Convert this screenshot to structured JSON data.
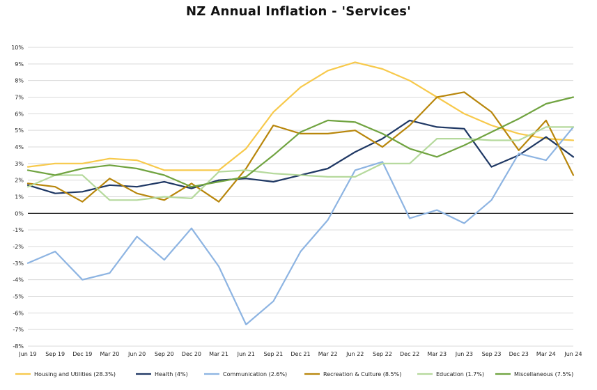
{
  "chart_data": {
    "type": "line",
    "title": "NZ Annual Inflation - 'Services'",
    "xlabel": "",
    "ylabel": "",
    "ylim": [
      -8,
      10
    ],
    "y_tick_labels": [
      "-8%",
      "-7%",
      "-6%",
      "-5%",
      "-4%",
      "-3%",
      "-2%",
      "-1%",
      "0%",
      "1%",
      "2%",
      "3%",
      "4%",
      "5%",
      "6%",
      "7%",
      "8%",
      "9%",
      "10%"
    ],
    "categories": [
      "Jun 19",
      "Sep 19",
      "Dec 19",
      "Mar 20",
      "Jun 20",
      "Sep 20",
      "Dec 20",
      "Mar 21",
      "Jun 21",
      "Sep 21",
      "Dec 21",
      "Mar 22",
      "Jun 22",
      "Sep 22",
      "Dec 22",
      "Mar 23",
      "Jun 23",
      "Sep 23",
      "Dec 23",
      "Mar 24",
      "Jun 24"
    ],
    "legend_position": "bottom",
    "gridlines": true,
    "series": [
      {
        "name": "Housing and Utilities (28.3%)",
        "color": "#F7C94B",
        "values": [
          2.8,
          3.0,
          3.0,
          3.3,
          3.2,
          2.6,
          2.6,
          2.6,
          3.9,
          6.1,
          7.6,
          8.6,
          9.1,
          8.7,
          8.0,
          7.0,
          6.0,
          5.3,
          4.8,
          4.5,
          4.4
        ]
      },
      {
        "name": "Health (4%)",
        "color": "#1F3864",
        "values": [
          1.7,
          1.2,
          1.3,
          1.7,
          1.6,
          1.9,
          1.5,
          2.0,
          2.1,
          1.9,
          2.3,
          2.7,
          3.7,
          4.5,
          5.6,
          5.2,
          5.1,
          2.8,
          3.5,
          4.6,
          3.4
        ]
      },
      {
        "name": "Communication (2.6%)",
        "color": "#8DB4E2",
        "values": [
          -3.0,
          -2.3,
          -4.0,
          -3.6,
          -1.4,
          -2.8,
          -0.9,
          -3.2,
          -6.7,
          -5.3,
          -2.3,
          -0.4,
          2.6,
          3.1,
          -0.3,
          0.2,
          -0.6,
          0.8,
          3.6,
          3.2,
          5.2
        ]
      },
      {
        "name": "Recreation & Culture (8.5%)",
        "color": "#B8860B",
        "values": [
          1.8,
          1.6,
          0.7,
          2.1,
          1.2,
          0.8,
          1.8,
          0.7,
          2.7,
          5.3,
          4.8,
          4.8,
          5.0,
          4.0,
          5.3,
          7.0,
          7.3,
          6.1,
          3.8,
          5.6,
          2.3
        ]
      },
      {
        "name": "Education (1.7%)",
        "color": "#B5D99C",
        "values": [
          1.6,
          2.3,
          2.3,
          0.8,
          0.8,
          1.0,
          0.9,
          2.5,
          2.6,
          2.4,
          2.3,
          2.2,
          2.2,
          3.0,
          3.0,
          4.5,
          4.5,
          4.4,
          4.4,
          5.2,
          5.2
        ]
      },
      {
        "name": "Miscellaneous (7.5%)",
        "color": "#70A340",
        "values": [
          2.6,
          2.3,
          2.7,
          2.9,
          2.7,
          2.3,
          1.6,
          1.9,
          2.2,
          3.5,
          4.9,
          5.6,
          5.5,
          4.8,
          3.9,
          3.4,
          4.1,
          4.9,
          5.7,
          6.6,
          7.0
        ]
      }
    ]
  }
}
